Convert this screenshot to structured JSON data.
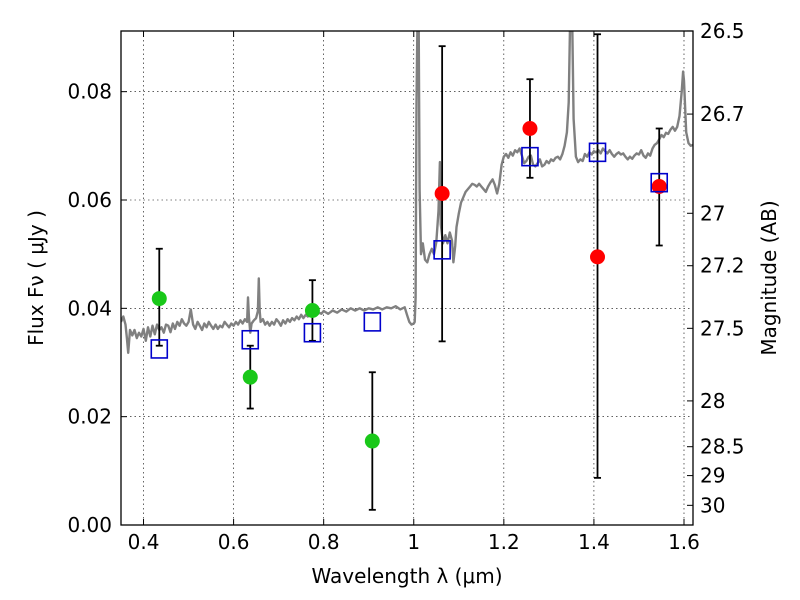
{
  "chart_data": {
    "type": "scatter",
    "xlabel": "Wavelength  λ (μm)",
    "ylabel": "Flux  Fν  ( μJy )",
    "ylabel_right": "Magnitude (AB)",
    "xlim": [
      0.35,
      1.62
    ],
    "ylim": [
      0.0,
      0.0912
    ],
    "grid": true,
    "x_ticks": [
      {
        "value": 0.4,
        "label": "0.4"
      },
      {
        "value": 0.6,
        "label": "0.6"
      },
      {
        "value": 0.8,
        "label": "0.8"
      },
      {
        "value": 1.0,
        "label": "1"
      },
      {
        "value": 1.2,
        "label": "1.2"
      },
      {
        "value": 1.4,
        "label": "1.4"
      },
      {
        "value": 1.6,
        "label": "1.6"
      }
    ],
    "y_ticks": [
      {
        "value": 0.0,
        "label": "0.00"
      },
      {
        "value": 0.02,
        "label": "0.02"
      },
      {
        "value": 0.04,
        "label": "0.04"
      },
      {
        "value": 0.06,
        "label": "0.06"
      },
      {
        "value": 0.08,
        "label": "0.08"
      }
    ],
    "right_ticks": [
      {
        "value": 26.5,
        "label": "26.5"
      },
      {
        "value": 26.7,
        "label": "26.7"
      },
      {
        "value": 27.0,
        "label": "27"
      },
      {
        "value": 27.2,
        "label": "27.2"
      },
      {
        "value": 27.5,
        "label": "27.5"
      },
      {
        "value": 28.0,
        "label": "28"
      },
      {
        "value": 28.5,
        "label": "28.5"
      },
      {
        "value": 29.0,
        "label": "29"
      },
      {
        "value": 30.0,
        "label": "30"
      }
    ],
    "sed_model": {
      "color": "#808080",
      "points": [
        [
          0.35,
          0.0375
        ],
        [
          0.355,
          0.0385
        ],
        [
          0.36,
          0.037
        ],
        [
          0.363,
          0.0345
        ],
        [
          0.366,
          0.0318
        ],
        [
          0.37,
          0.036
        ],
        [
          0.375,
          0.035
        ],
        [
          0.38,
          0.036
        ],
        [
          0.385,
          0.0345
        ],
        [
          0.39,
          0.0355
        ],
        [
          0.395,
          0.0348
        ],
        [
          0.4,
          0.0362
        ],
        [
          0.405,
          0.034
        ],
        [
          0.41,
          0.0365
        ],
        [
          0.415,
          0.0348
        ],
        [
          0.42,
          0.0368
        ],
        [
          0.425,
          0.0352
        ],
        [
          0.43,
          0.037
        ],
        [
          0.435,
          0.036
        ],
        [
          0.44,
          0.0365
        ],
        [
          0.445,
          0.0355
        ],
        [
          0.45,
          0.037
        ],
        [
          0.455,
          0.0368
        ],
        [
          0.46,
          0.0356
        ],
        [
          0.465,
          0.0372
        ],
        [
          0.47,
          0.0362
        ],
        [
          0.475,
          0.0375
        ],
        [
          0.48,
          0.0368
        ],
        [
          0.485,
          0.038
        ],
        [
          0.49,
          0.0372
        ],
        [
          0.495,
          0.0368
        ],
        [
          0.5,
          0.0375
        ],
        [
          0.505,
          0.0398
        ],
        [
          0.51,
          0.037
        ],
        [
          0.515,
          0.0362
        ],
        [
          0.52,
          0.0375
        ],
        [
          0.525,
          0.0368
        ],
        [
          0.53,
          0.036
        ],
        [
          0.535,
          0.0372
        ],
        [
          0.54,
          0.0365
        ],
        [
          0.545,
          0.0375
        ],
        [
          0.55,
          0.0368
        ],
        [
          0.555,
          0.0362
        ],
        [
          0.56,
          0.037
        ],
        [
          0.565,
          0.0362
        ],
        [
          0.57,
          0.0368
        ],
        [
          0.575,
          0.0365
        ],
        [
          0.58,
          0.0375
        ],
        [
          0.585,
          0.037
        ],
        [
          0.59,
          0.0365
        ],
        [
          0.595,
          0.0372
        ],
        [
          0.6,
          0.0368
        ],
        [
          0.605,
          0.0375
        ],
        [
          0.61,
          0.037
        ],
        [
          0.615,
          0.0378
        ],
        [
          0.62,
          0.0372
        ],
        [
          0.625,
          0.038
        ],
        [
          0.63,
          0.0375
        ],
        [
          0.632,
          0.042
        ],
        [
          0.634,
          0.0385
        ],
        [
          0.637,
          0.0355
        ],
        [
          0.64,
          0.0372
        ],
        [
          0.645,
          0.0378
        ],
        [
          0.65,
          0.0382
        ],
        [
          0.654,
          0.0395
        ],
        [
          0.656,
          0.0455
        ],
        [
          0.658,
          0.0395
        ],
        [
          0.66,
          0.0375
        ],
        [
          0.665,
          0.038
        ],
        [
          0.67,
          0.037
        ],
        [
          0.675,
          0.0375
        ],
        [
          0.68,
          0.0368
        ],
        [
          0.685,
          0.0375
        ],
        [
          0.69,
          0.037
        ],
        [
          0.695,
          0.038
        ],
        [
          0.7,
          0.0375
        ],
        [
          0.705,
          0.0368
        ],
        [
          0.71,
          0.0378
        ],
        [
          0.715,
          0.0372
        ],
        [
          0.72,
          0.038
        ],
        [
          0.725,
          0.0375
        ],
        [
          0.73,
          0.0382
        ],
        [
          0.735,
          0.0378
        ],
        [
          0.74,
          0.0385
        ],
        [
          0.745,
          0.038
        ],
        [
          0.75,
          0.0388
        ],
        [
          0.755,
          0.0382
        ],
        [
          0.76,
          0.0388
        ],
        [
          0.765,
          0.0385
        ],
        [
          0.77,
          0.039
        ],
        [
          0.775,
          0.0385
        ],
        [
          0.78,
          0.0392
        ],
        [
          0.785,
          0.0388
        ],
        [
          0.79,
          0.0392
        ],
        [
          0.795,
          0.039
        ],
        [
          0.8,
          0.0395
        ],
        [
          0.81,
          0.039
        ],
        [
          0.82,
          0.0396
        ],
        [
          0.83,
          0.0392
        ],
        [
          0.84,
          0.0398
        ],
        [
          0.85,
          0.0394
        ],
        [
          0.86,
          0.04
        ],
        [
          0.87,
          0.0396
        ],
        [
          0.88,
          0.04
        ],
        [
          0.89,
          0.0396
        ],
        [
          0.9,
          0.04
        ],
        [
          0.91,
          0.0398
        ],
        [
          0.92,
          0.0402
        ],
        [
          0.93,
          0.0398
        ],
        [
          0.94,
          0.0402
        ],
        [
          0.95,
          0.04
        ],
        [
          0.96,
          0.0404
        ],
        [
          0.97,
          0.0398
        ],
        [
          0.98,
          0.0402
        ],
        [
          0.985,
          0.0388
        ],
        [
          0.99,
          0.0375
        ],
        [
          0.995,
          0.037
        ],
        [
          1.0,
          0.0372
        ],
        [
          1.002,
          0.0375
        ],
        [
          1.004,
          0.042
        ],
        [
          1.006,
          0.078
        ],
        [
          1.008,
          0.092
        ],
        [
          1.011,
          0.092
        ],
        [
          1.013,
          0.062
        ],
        [
          1.016,
          0.05
        ],
        [
          1.02,
          0.052
        ],
        [
          1.025,
          0.049
        ],
        [
          1.03,
          0.0485
        ],
        [
          1.035,
          0.05
        ],
        [
          1.04,
          0.051
        ],
        [
          1.045,
          0.05
        ],
        [
          1.05,
          0.0522
        ],
        [
          1.055,
          0.058
        ],
        [
          1.058,
          0.067
        ],
        [
          1.06,
          0.0555
        ],
        [
          1.065,
          0.052
        ],
        [
          1.07,
          0.0535
        ],
        [
          1.075,
          0.052
        ],
        [
          1.08,
          0.054
        ],
        [
          1.085,
          0.0525
        ],
        [
          1.088,
          0.0485
        ],
        [
          1.092,
          0.0515
        ],
        [
          1.095,
          0.055
        ],
        [
          1.1,
          0.0575
        ],
        [
          1.105,
          0.0595
        ],
        [
          1.11,
          0.0605
        ],
        [
          1.115,
          0.0615
        ],
        [
          1.12,
          0.062
        ],
        [
          1.125,
          0.0625
        ],
        [
          1.13,
          0.063
        ],
        [
          1.135,
          0.0628
        ],
        [
          1.14,
          0.0625
        ],
        [
          1.145,
          0.063
        ],
        [
          1.15,
          0.0625
        ],
        [
          1.155,
          0.062
        ],
        [
          1.16,
          0.0615
        ],
        [
          1.165,
          0.0625
        ],
        [
          1.17,
          0.0632
        ],
        [
          1.175,
          0.0638
        ],
        [
          1.18,
          0.0628
        ],
        [
          1.185,
          0.0612
        ],
        [
          1.19,
          0.063
        ],
        [
          1.195,
          0.0665
        ],
        [
          1.2,
          0.068
        ],
        [
          1.205,
          0.0685
        ],
        [
          1.21,
          0.0678
        ],
        [
          1.215,
          0.0688
        ],
        [
          1.22,
          0.0682
        ],
        [
          1.225,
          0.0692
        ],
        [
          1.23,
          0.0688
        ],
        [
          1.235,
          0.0695
        ],
        [
          1.24,
          0.0682
        ],
        [
          1.245,
          0.0668
        ],
        [
          1.25,
          0.0672
        ],
        [
          1.255,
          0.068
        ],
        [
          1.26,
          0.0682
        ],
        [
          1.265,
          0.0665
        ],
        [
          1.27,
          0.0662
        ],
        [
          1.275,
          0.0668
        ],
        [
          1.28,
          0.0675
        ],
        [
          1.285,
          0.0662
        ],
        [
          1.29,
          0.0665
        ],
        [
          1.295,
          0.0672
        ],
        [
          1.3,
          0.0668
        ],
        [
          1.305,
          0.0675
        ],
        [
          1.31,
          0.0672
        ],
        [
          1.315,
          0.0678
        ],
        [
          1.32,
          0.068
        ],
        [
          1.325,
          0.0675
        ],
        [
          1.33,
          0.0685
        ],
        [
          1.335,
          0.07
        ],
        [
          1.34,
          0.0725
        ],
        [
          1.344,
          0.078
        ],
        [
          1.347,
          0.092
        ],
        [
          1.352,
          0.092
        ],
        [
          1.355,
          0.075
        ],
        [
          1.36,
          0.068
        ],
        [
          1.365,
          0.067
        ],
        [
          1.37,
          0.0675
        ],
        [
          1.375,
          0.0672
        ],
        [
          1.38,
          0.0685
        ],
        [
          1.385,
          0.068
        ],
        [
          1.39,
          0.0688
        ],
        [
          1.395,
          0.0684
        ],
        [
          1.4,
          0.069
        ],
        [
          1.405,
          0.0688
        ],
        [
          1.41,
          0.0692
        ],
        [
          1.415,
          0.0686
        ],
        [
          1.42,
          0.0695
        ],
        [
          1.425,
          0.069
        ],
        [
          1.43,
          0.0686
        ],
        [
          1.435,
          0.0692
        ],
        [
          1.44,
          0.0685
        ],
        [
          1.445,
          0.068
        ],
        [
          1.45,
          0.0685
        ],
        [
          1.455,
          0.0688
        ],
        [
          1.46,
          0.0684
        ],
        [
          1.465,
          0.0686
        ],
        [
          1.47,
          0.068
        ],
        [
          1.475,
          0.0675
        ],
        [
          1.48,
          0.068
        ],
        [
          1.485,
          0.0676
        ],
        [
          1.49,
          0.0682
        ],
        [
          1.495,
          0.0686
        ],
        [
          1.5,
          0.0684
        ],
        [
          1.505,
          0.0692
        ],
        [
          1.51,
          0.0682
        ],
        [
          1.515,
          0.0678
        ],
        [
          1.52,
          0.0686
        ],
        [
          1.525,
          0.0682
        ],
        [
          1.53,
          0.0695
        ],
        [
          1.535,
          0.0702
        ],
        [
          1.54,
          0.0705
        ],
        [
          1.545,
          0.0712
        ],
        [
          1.55,
          0.072
        ],
        [
          1.555,
          0.0716
        ],
        [
          1.56,
          0.0724
        ],
        [
          1.565,
          0.0722
        ],
        [
          1.57,
          0.073
        ],
        [
          1.575,
          0.0735
        ],
        [
          1.58,
          0.0728
        ],
        [
          1.585,
          0.0735
        ],
        [
          1.59,
          0.0755
        ],
        [
          1.595,
          0.08
        ],
        [
          1.598,
          0.0837
        ],
        [
          1.6,
          0.082
        ],
        [
          1.605,
          0.0725
        ],
        [
          1.61,
          0.0705
        ],
        [
          1.615,
          0.07
        ],
        [
          1.62,
          0.0702
        ]
      ]
    },
    "series": [
      {
        "marker": "circle",
        "color": "#19c819",
        "points": [
          {
            "x": 0.435,
            "y": 0.0418,
            "ylo": 0.0331,
            "yhi": 0.051
          },
          {
            "x": 0.637,
            "y": 0.0273,
            "ylo": 0.0215,
            "yhi": 0.0331
          },
          {
            "x": 0.775,
            "y": 0.0396,
            "ylo": 0.034,
            "yhi": 0.0452
          },
          {
            "x": 0.908,
            "y": 0.0155,
            "ylo": 0.0028,
            "yhi": 0.0282
          }
        ]
      },
      {
        "marker": "circle",
        "color": "#ff0000",
        "points": [
          {
            "x": 1.063,
            "y": 0.0612,
            "ylo": 0.0339,
            "yhi": 0.0884
          },
          {
            "x": 1.258,
            "y": 0.0732,
            "ylo": 0.0641,
            "yhi": 0.0823
          },
          {
            "x": 1.408,
            "y": 0.0495,
            "ylo": 0.0087,
            "yhi": 0.0906
          },
          {
            "x": 1.545,
            "y": 0.0625,
            "ylo": 0.0516,
            "yhi": 0.0732
          }
        ]
      },
      {
        "marker": "open-square",
        "color": "#0000cc",
        "points": [
          {
            "x": 0.435,
            "y": 0.0325
          },
          {
            "x": 0.637,
            "y": 0.0342
          },
          {
            "x": 0.775,
            "y": 0.0355
          },
          {
            "x": 0.908,
            "y": 0.0375
          },
          {
            "x": 1.063,
            "y": 0.0508
          },
          {
            "x": 1.258,
            "y": 0.068
          },
          {
            "x": 1.408,
            "y": 0.0688
          },
          {
            "x": 1.545,
            "y": 0.0632
          }
        ]
      }
    ]
  }
}
